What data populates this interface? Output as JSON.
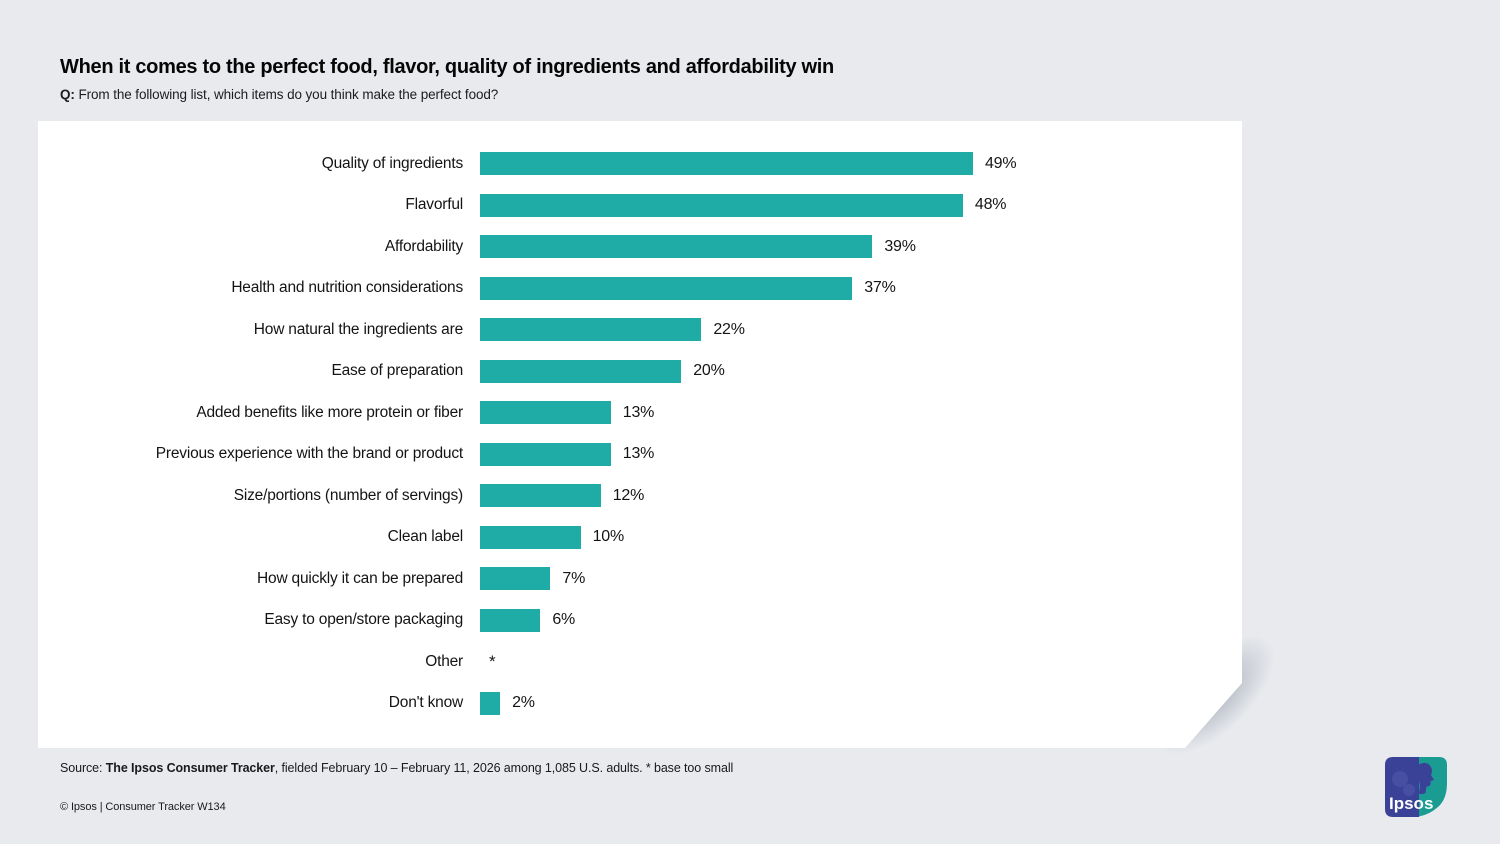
{
  "header": {
    "title": "When it comes to the perfect food, flavor, quality of ingredients and affordability win",
    "question_prefix": "Q:",
    "question": " From the following list, which items do you think make the perfect food?"
  },
  "chart_data": {
    "type": "bar",
    "orientation": "horizontal",
    "categories": [
      "Quality of ingredients",
      "Flavorful",
      "Affordability",
      "Health and nutrition considerations",
      "How natural the ingredients are",
      "Ease of preparation",
      "Added benefits like more protein or fiber",
      "Previous experience with the brand or product",
      "Size/portions (number of servings)",
      "Clean label",
      "How quickly it can be prepared",
      "Easy to open/store packaging",
      "Other",
      "Don't know"
    ],
    "values": [
      49,
      48,
      39,
      37,
      22,
      20,
      13,
      13,
      12,
      10,
      7,
      6,
      null,
      2
    ],
    "value_labels": [
      "49%",
      "48%",
      "39%",
      "37%",
      "22%",
      "20%",
      "13%",
      "13%",
      "12%",
      "10%",
      "7%",
      "6%",
      "*",
      "2%"
    ],
    "bar_color": "#1FACA6",
    "xlim": [
      0,
      56
    ],
    "grid": false,
    "legend": false,
    "note": "* base too small"
  },
  "footer": {
    "source_prefix": "Source: ",
    "source_bold": "The Ipsos Consumer Tracker",
    "source_rest": ", fielded February 10 – February 11, 2026 among 1,085 U.S. adults. * base too small",
    "copyright": "© Ipsos | Consumer Tracker W134"
  },
  "logo": {
    "text": "Ipsos",
    "blue": "#3A4297",
    "teal": "#1B9C92"
  },
  "colors": {
    "background": "#E8EAEE",
    "card": "#FFFFFF",
    "text": "#141414"
  }
}
